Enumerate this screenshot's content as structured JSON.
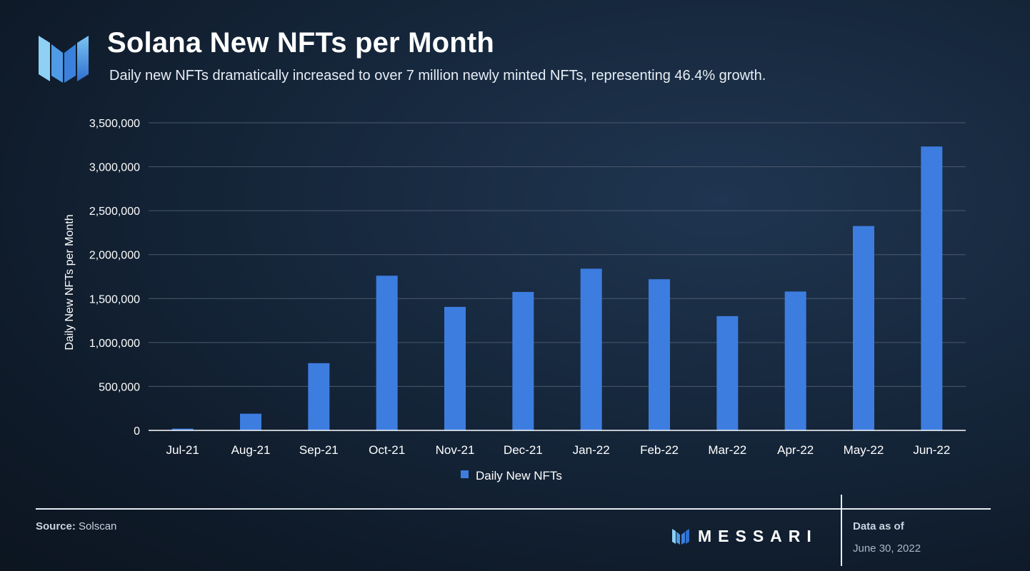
{
  "header": {
    "title": "Solana New NFTs per Month",
    "subtitle": "Daily new NFTs dramatically increased to over 7 million newly minted NFTs, representing 46.4% growth."
  },
  "colors": {
    "bar": "#3d7de0",
    "gridline": "#4a5a6e",
    "axis": "#ffffff"
  },
  "chart_data": {
    "type": "bar",
    "title": "Solana New NFTs per Month",
    "xlabel": "",
    "ylabel": "Daily New NFTs per Month",
    "ylim": [
      0,
      3500000
    ],
    "yticks": [
      0,
      500000,
      1000000,
      1500000,
      2000000,
      2500000,
      3000000,
      3500000
    ],
    "ytick_labels": [
      "0",
      "500,000",
      "1,000,000",
      "1,500,000",
      "2,000,000",
      "2,500,000",
      "3,000,000",
      "3,500,000"
    ],
    "categories": [
      "Jul-21",
      "Aug-21",
      "Sep-21",
      "Oct-21",
      "Nov-21",
      "Dec-21",
      "Jan-22",
      "Feb-22",
      "Mar-22",
      "Apr-22",
      "May-22",
      "Jun-22"
    ],
    "series": [
      {
        "name": "Daily New NFTs",
        "values": [
          20000,
          190000,
          765000,
          1760000,
          1405000,
          1575000,
          1840000,
          1720000,
          1300000,
          1580000,
          2325000,
          3230000
        ]
      }
    ],
    "grid": true,
    "legend": "bottom-center"
  },
  "footer": {
    "source_label": "Source:",
    "source_value": "Solscan",
    "brand": "MESSARI",
    "as_of_label": "Data as of",
    "as_of_date": "June 30, 2022"
  }
}
